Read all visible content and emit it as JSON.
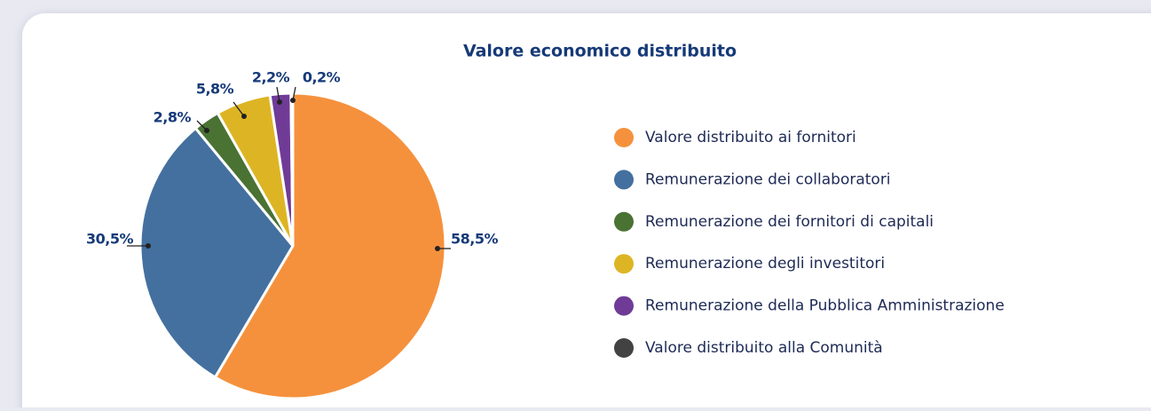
{
  "chart_data": {
    "type": "pie",
    "title": "Valore economico distribuito",
    "categories": [
      "Valore distribuito ai fornitori",
      "Remunerazione dei collaboratori",
      "Remunerazione dei fornitori di capitali",
      "Remunerazione degli investitori",
      "Remunerazione della Pubblica Amministrazione",
      "Valore distribuito alla Comunità"
    ],
    "values": [
      58.5,
      30.5,
      2.8,
      5.8,
      2.2,
      0.2
    ],
    "value_labels": [
      "58,5%",
      "30,5%",
      "2,8%",
      "5,8%",
      "2,2%",
      "0,2%"
    ],
    "colors": [
      "#f5913d",
      "#44709f",
      "#4a7233",
      "#ddb524",
      "#6f3b97",
      "#424242"
    ],
    "legend": "right"
  }
}
